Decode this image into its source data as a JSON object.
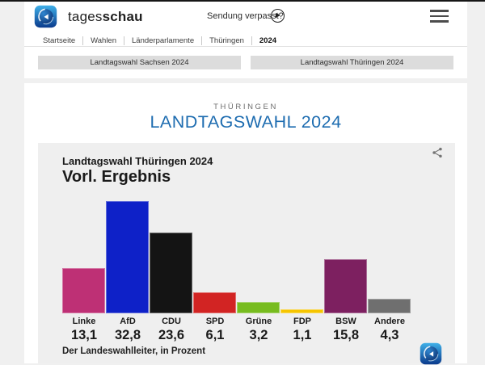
{
  "header": {
    "brand_tages": "tages",
    "brand_schau": "schau",
    "sendung_verpasst": "Sendung verpasst?",
    "breadcrumb": [
      "Startseite",
      "Wahlen",
      "Länderparlamente",
      "Thüringen",
      "2024"
    ],
    "tabs": [
      {
        "label": "Landtagswahl Sachsen 2024"
      },
      {
        "label": "Landtagswahl Thüringen 2024"
      }
    ]
  },
  "page": {
    "kicker": "THÜRINGEN",
    "title": "LANDTAGSWAHL 2024",
    "title_color": "#1d6cb0"
  },
  "chart_data": {
    "type": "bar",
    "title": "Landtagswahl Thüringen 2024",
    "subtitle": "Vorl. Ergebnis",
    "source": "Der Landeswahlleiter, in Prozent",
    "categories": [
      "Linke",
      "AfD",
      "CDU",
      "SPD",
      "Grüne",
      "FDP",
      "BSW",
      "Andere"
    ],
    "values": [
      13.1,
      32.8,
      23.6,
      6.1,
      3.2,
      1.1,
      15.8,
      4.3
    ],
    "value_labels": [
      "13,1",
      "32,8",
      "23,6",
      "6,1",
      "3,2",
      "1,1",
      "15,8",
      "4,3"
    ],
    "colors": [
      "#be3075",
      "#0e21c8",
      "#141414",
      "#d22423",
      "#77bc1f",
      "#f6c500",
      "#7d2060",
      "#6f6f6f"
    ],
    "ylabel": "Prozent",
    "ylim": [
      0,
      32.8
    ],
    "grid": false,
    "legend": false
  }
}
